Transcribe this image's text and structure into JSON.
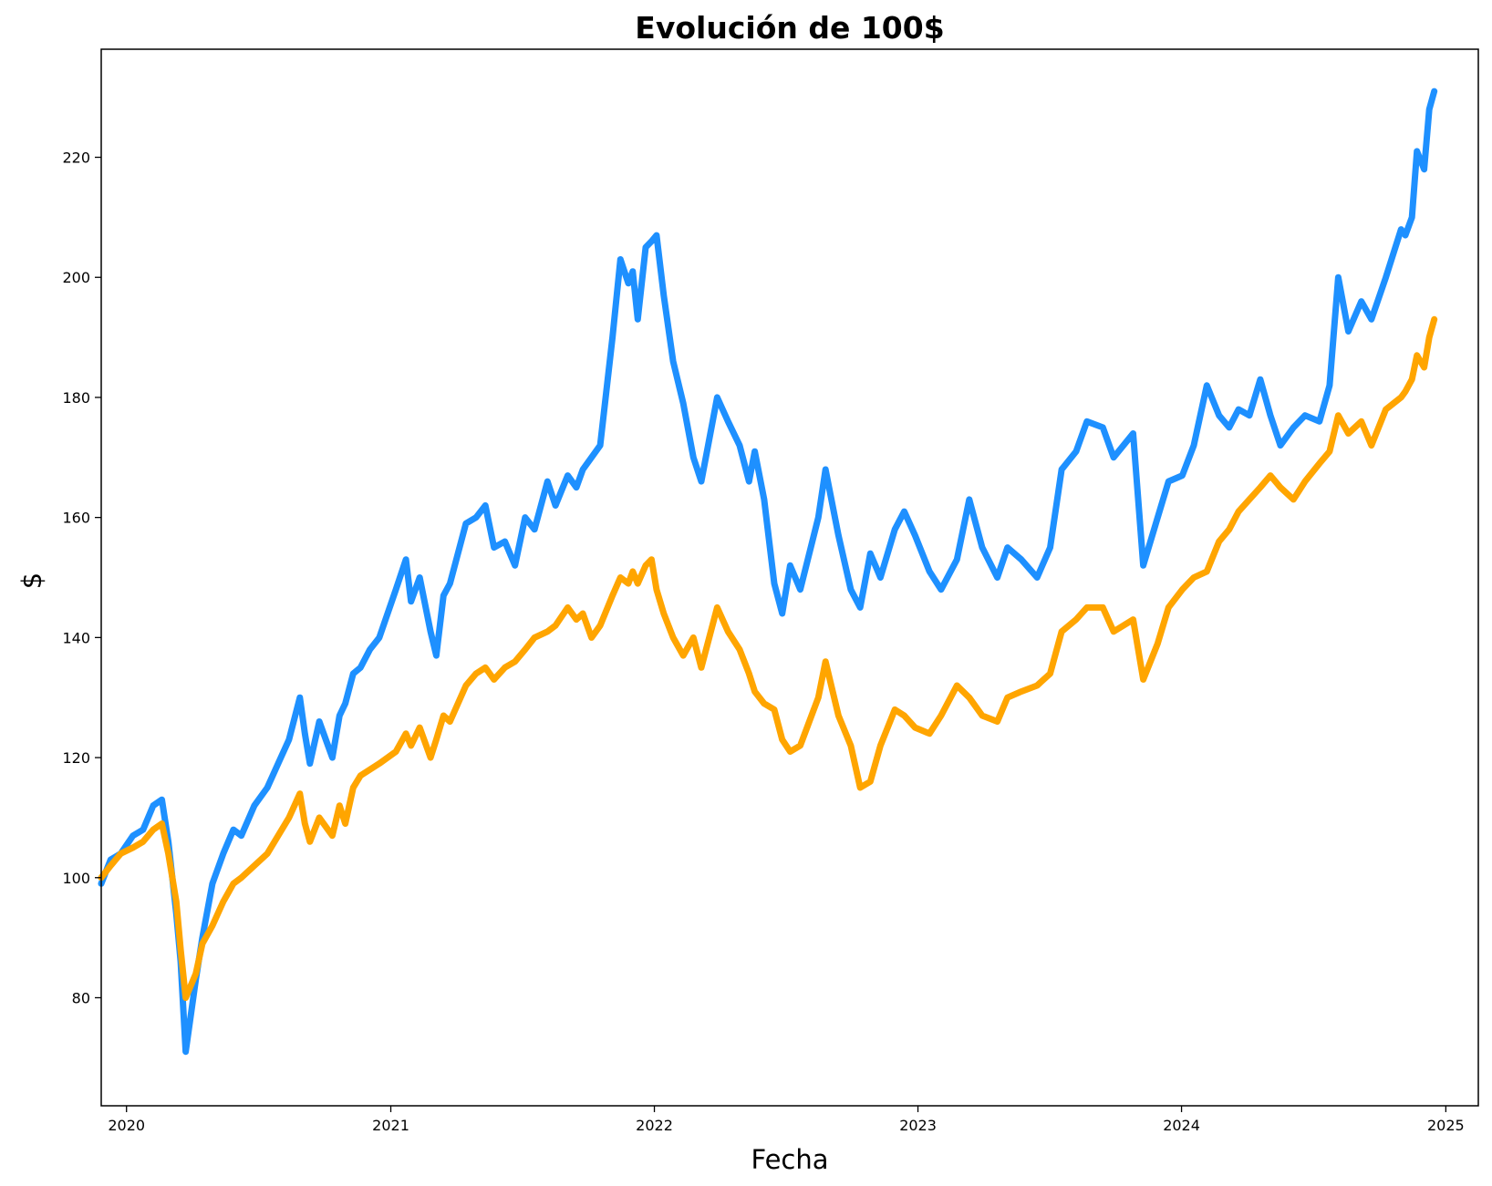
{
  "chart_data": {
    "type": "line",
    "title": "Evolución de 100$",
    "xlabel": "Fecha",
    "ylabel": "$",
    "xlim": [
      "2019-11-27",
      "2025-02-15"
    ],
    "ylim": [
      62,
      238
    ],
    "x_ticks": [
      "2020",
      "2021",
      "2022",
      "2023",
      "2024",
      "2025"
    ],
    "x_tick_dates": [
      "2020-01-01",
      "2021-01-01",
      "2022-01-01",
      "2023-01-01",
      "2024-01-01",
      "2025-01-01"
    ],
    "y_ticks": [
      80,
      100,
      120,
      140,
      160,
      180,
      200,
      220
    ],
    "grid": false,
    "legend": false,
    "line_width": "thick",
    "series": [
      {
        "color": "#1e90ff",
        "x": [
          "2019-11-27",
          "2019-12-10",
          "2019-12-24",
          "2020-01-10",
          "2020-01-24",
          "2020-02-07",
          "2020-02-19",
          "2020-02-28",
          "2020-03-10",
          "2020-03-16",
          "2020-03-23",
          "2020-04-06",
          "2020-04-15",
          "2020-04-29",
          "2020-05-14",
          "2020-05-28",
          "2020-06-08",
          "2020-06-26",
          "2020-07-14",
          "2020-07-29",
          "2020-08-13",
          "2020-08-28",
          "2020-09-04",
          "2020-09-11",
          "2020-09-24",
          "2020-10-12",
          "2020-10-22",
          "2020-10-30",
          "2020-11-10",
          "2020-11-20",
          "2020-12-03",
          "2020-12-16",
          "2021-01-08",
          "2021-01-22",
          "2021-01-29",
          "2021-02-10",
          "2021-02-25",
          "2021-03-05",
          "2021-03-15",
          "2021-03-24",
          "2021-04-15",
          "2021-04-29",
          "2021-05-12",
          "2021-05-24",
          "2021-06-08",
          "2021-06-22",
          "2021-07-06",
          "2021-07-19",
          "2021-08-06",
          "2021-08-17",
          "2021-09-03",
          "2021-09-15",
          "2021-09-24",
          "2021-10-06",
          "2021-10-18",
          "2021-11-04",
          "2021-11-15",
          "2021-11-26",
          "2021-12-02",
          "2021-12-09",
          "2021-12-20",
          "2021-12-28",
          "2022-01-04",
          "2022-01-14",
          "2022-01-27",
          "2022-02-10",
          "2022-02-24",
          "2022-03-07",
          "2022-03-29",
          "2022-04-13",
          "2022-04-29",
          "2022-05-12",
          "2022-05-20",
          "2022-06-02",
          "2022-06-16",
          "2022-06-27",
          "2022-07-08",
          "2022-07-22",
          "2022-08-16",
          "2022-08-26",
          "2022-09-13",
          "2022-09-30",
          "2022-10-13",
          "2022-10-27",
          "2022-11-10",
          "2022-11-30",
          "2022-12-13",
          "2022-12-28",
          "2023-01-17",
          "2023-02-02",
          "2023-02-24",
          "2023-03-13",
          "2023-03-31",
          "2023-04-21",
          "2023-05-05",
          "2023-05-24",
          "2023-06-15",
          "2023-07-03",
          "2023-07-19",
          "2023-08-08",
          "2023-08-23",
          "2023-09-14",
          "2023-09-29",
          "2023-10-26",
          "2023-11-09",
          "2023-11-29",
          "2023-12-14",
          "2024-01-02",
          "2024-01-18",
          "2024-02-05",
          "2024-02-22",
          "2024-03-07",
          "2024-03-20",
          "2024-04-04",
          "2024-04-19",
          "2024-05-03",
          "2024-05-17",
          "2024-06-04",
          "2024-06-20",
          "2024-07-10",
          "2024-07-24",
          "2024-08-05",
          "2024-08-19",
          "2024-09-06",
          "2024-09-20",
          "2024-10-10",
          "2024-10-31",
          "2024-11-06",
          "2024-11-15",
          "2024-11-22",
          "2024-12-02",
          "2024-12-09",
          "2024-12-16"
        ],
        "y": [
          99,
          103,
          104,
          107,
          108,
          112,
          113,
          106,
          94,
          86,
          71,
          83,
          90,
          99,
          104,
          108,
          107,
          112,
          115,
          119,
          123,
          130,
          124,
          119,
          126,
          120,
          127,
          129,
          134,
          135,
          138,
          140,
          148,
          153,
          146,
          150,
          141,
          137,
          147,
          149,
          159,
          160,
          162,
          155,
          156,
          152,
          160,
          158,
          166,
          162,
          167,
          165,
          168,
          170,
          172,
          190,
          203,
          199,
          201,
          193,
          205,
          206,
          207,
          197,
          186,
          179,
          170,
          166,
          180,
          176,
          172,
          166,
          171,
          163,
          149,
          144,
          152,
          148,
          160,
          168,
          157,
          148,
          145,
          154,
          150,
          158,
          161,
          157,
          151,
          148,
          153,
          163,
          155,
          150,
          155,
          153,
          150,
          155,
          168,
          171,
          176,
          175,
          170,
          174,
          152,
          160,
          166,
          167,
          172,
          182,
          177,
          175,
          178,
          177,
          183,
          177,
          172,
          175,
          177,
          176,
          182,
          200,
          191,
          196,
          193,
          200,
          208,
          207,
          210,
          221,
          218,
          228,
          231
        ]
      },
      {
        "color": "#ffa500",
        "x": [
          "2019-11-27",
          "2019-12-10",
          "2019-12-24",
          "2020-01-10",
          "2020-01-24",
          "2020-02-07",
          "2020-02-19",
          "2020-02-28",
          "2020-03-10",
          "2020-03-16",
          "2020-03-23",
          "2020-04-06",
          "2020-04-15",
          "2020-04-29",
          "2020-05-14",
          "2020-05-28",
          "2020-06-08",
          "2020-06-26",
          "2020-07-14",
          "2020-07-29",
          "2020-08-13",
          "2020-08-28",
          "2020-09-04",
          "2020-09-11",
          "2020-09-24",
          "2020-10-12",
          "2020-10-22",
          "2020-10-30",
          "2020-11-10",
          "2020-11-20",
          "2020-12-03",
          "2020-12-16",
          "2021-01-08",
          "2021-01-22",
          "2021-01-29",
          "2021-02-10",
          "2021-02-25",
          "2021-03-05",
          "2021-03-15",
          "2021-03-24",
          "2021-04-15",
          "2021-04-29",
          "2021-05-12",
          "2021-05-24",
          "2021-06-08",
          "2021-06-22",
          "2021-07-06",
          "2021-07-19",
          "2021-08-06",
          "2021-08-17",
          "2021-09-03",
          "2021-09-15",
          "2021-09-24",
          "2021-10-06",
          "2021-10-18",
          "2021-11-04",
          "2021-11-15",
          "2021-11-26",
          "2021-12-02",
          "2021-12-09",
          "2021-12-20",
          "2021-12-28",
          "2022-01-04",
          "2022-01-14",
          "2022-01-27",
          "2022-02-10",
          "2022-02-24",
          "2022-03-07",
          "2022-03-29",
          "2022-04-13",
          "2022-04-29",
          "2022-05-12",
          "2022-05-20",
          "2022-06-02",
          "2022-06-16",
          "2022-06-27",
          "2022-07-08",
          "2022-07-22",
          "2022-08-16",
          "2022-08-26",
          "2022-09-13",
          "2022-09-30",
          "2022-10-13",
          "2022-10-27",
          "2022-11-10",
          "2022-11-30",
          "2022-12-13",
          "2022-12-28",
          "2023-01-17",
          "2023-02-02",
          "2023-02-24",
          "2023-03-13",
          "2023-03-31",
          "2023-04-21",
          "2023-05-05",
          "2023-05-24",
          "2023-06-15",
          "2023-07-03",
          "2023-07-19",
          "2023-08-08",
          "2023-08-23",
          "2023-09-14",
          "2023-09-29",
          "2023-10-26",
          "2023-11-09",
          "2023-11-29",
          "2023-12-14",
          "2024-01-02",
          "2024-01-18",
          "2024-02-05",
          "2024-02-22",
          "2024-03-07",
          "2024-03-20",
          "2024-04-04",
          "2024-04-19",
          "2024-05-03",
          "2024-05-17",
          "2024-06-04",
          "2024-06-20",
          "2024-07-10",
          "2024-07-24",
          "2024-08-05",
          "2024-08-19",
          "2024-09-06",
          "2024-09-20",
          "2024-10-10",
          "2024-10-31",
          "2024-11-06",
          "2024-11-15",
          "2024-11-22",
          "2024-12-02",
          "2024-12-09",
          "2024-12-16"
        ],
        "y": [
          100,
          102,
          104,
          105,
          106,
          108,
          109,
          104,
          96,
          88,
          80,
          84,
          89,
          92,
          96,
          99,
          100,
          102,
          104,
          107,
          110,
          114,
          109,
          106,
          110,
          107,
          112,
          109,
          115,
          117,
          118,
          119,
          121,
          124,
          122,
          125,
          120,
          123,
          127,
          126,
          132,
          134,
          135,
          133,
          135,
          136,
          138,
          140,
          141,
          142,
          145,
          143,
          144,
          140,
          142,
          147,
          150,
          149,
          151,
          149,
          152,
          153,
          148,
          144,
          140,
          137,
          140,
          135,
          145,
          141,
          138,
          134,
          131,
          129,
          128,
          123,
          121,
          122,
          130,
          136,
          127,
          122,
          115,
          116,
          122,
          128,
          127,
          125,
          124,
          127,
          132,
          130,
          127,
          126,
          130,
          131,
          132,
          134,
          141,
          143,
          145,
          145,
          141,
          143,
          133,
          139,
          145,
          148,
          150,
          151,
          156,
          158,
          161,
          163,
          165,
          167,
          165,
          163,
          166,
          169,
          171,
          177,
          174,
          176,
          172,
          178,
          180,
          181,
          183,
          187,
          185,
          190,
          193
        ]
      }
    ]
  }
}
